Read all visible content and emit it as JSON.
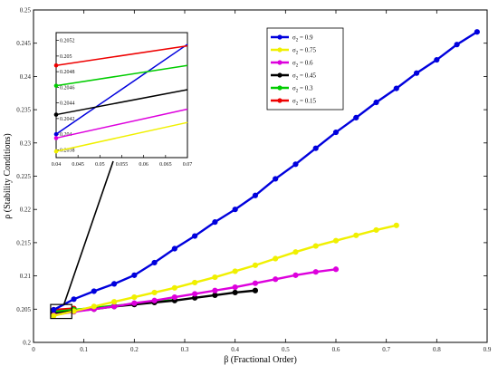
{
  "chart_data": {
    "type": "line",
    "xlabel": "β (Fractional Order)",
    "ylabel": "ρ (Stability Conditions)",
    "xlim": [
      0,
      0.9
    ],
    "ylim": [
      0.2,
      0.25
    ],
    "xticks": [
      "0",
      "0.1",
      "0.2",
      "0.3",
      "0.4",
      "0.5",
      "0.6",
      "0.7",
      "0.8",
      "0.9"
    ],
    "yticks": [
      "0.2",
      "0.205",
      "0.21",
      "0.215",
      "0.22",
      "0.225",
      "0.23",
      "0.235",
      "0.24",
      "0.245",
      "0.25"
    ],
    "grid": false,
    "legend": "top-center",
    "series": [
      {
        "name": "σ2 = 0.9",
        "label_main": "σ",
        "label_sub": "2",
        "label_value": " = 0.9",
        "color": "#0000dd",
        "marker": "circle",
        "x": [
          0.04,
          0.08,
          0.12,
          0.16,
          0.2,
          0.24,
          0.28,
          0.32,
          0.36,
          0.4,
          0.44,
          0.48,
          0.52,
          0.56,
          0.6,
          0.64,
          0.68,
          0.72,
          0.76,
          0.8,
          0.84,
          0.88
        ],
        "y": [
          0.2049,
          0.2065,
          0.2077,
          0.2088,
          0.2101,
          0.212,
          0.2141,
          0.216,
          0.2181,
          0.22,
          0.2221,
          0.2246,
          0.2268,
          0.2292,
          0.2316,
          0.2338,
          0.2361,
          0.2382,
          0.2405,
          0.2425,
          0.2448,
          0.2467
        ]
      },
      {
        "name": "σ2 = 0.75",
        "label_main": "σ",
        "label_sub": "2",
        "label_value": " = 0.75",
        "color": "#f0f000",
        "marker": "circle",
        "x": [
          0.04,
          0.08,
          0.12,
          0.16,
          0.2,
          0.24,
          0.28,
          0.32,
          0.36,
          0.4,
          0.44,
          0.48,
          0.52,
          0.56,
          0.6,
          0.64,
          0.68,
          0.72
        ],
        "y": [
          0.204,
          0.2047,
          0.2054,
          0.2061,
          0.2068,
          0.2075,
          0.2082,
          0.209,
          0.2098,
          0.2107,
          0.2116,
          0.2126,
          0.2136,
          0.2145,
          0.2153,
          0.2161,
          0.2169,
          0.2176
        ]
      },
      {
        "name": "σ2 = 0.6",
        "label_main": "σ",
        "label_sub": "2",
        "label_value": " = 0.6",
        "color": "#dd00dd",
        "marker": "circle",
        "x": [
          0.04,
          0.08,
          0.12,
          0.16,
          0.2,
          0.24,
          0.28,
          0.32,
          0.36,
          0.4,
          0.44,
          0.48,
          0.52,
          0.56,
          0.6
        ],
        "y": [
          0.2041,
          0.2046,
          0.205,
          0.2054,
          0.2059,
          0.2063,
          0.2068,
          0.2073,
          0.2078,
          0.2083,
          0.2089,
          0.2095,
          0.2101,
          0.2106,
          0.211
        ]
      },
      {
        "name": "σ2 = 0.45",
        "label_main": "σ",
        "label_sub": "2",
        "label_value": " = 0.45",
        "color": "#000000",
        "marker": "circle",
        "x": [
          0.04,
          0.08,
          0.12,
          0.16,
          0.2,
          0.24,
          0.28,
          0.32,
          0.36,
          0.4,
          0.44
        ],
        "y": [
          0.2043,
          0.2047,
          0.205,
          0.2054,
          0.2057,
          0.206,
          0.2063,
          0.2067,
          0.2071,
          0.2075,
          0.2078
        ]
      },
      {
        "name": "σ2 = 0.3",
        "label_main": "σ",
        "label_sub": "2",
        "label_value": " = 0.3",
        "color": "#00cc00",
        "marker": "circle",
        "x": [
          0.04,
          0.08,
          0.12,
          0.16,
          0.2,
          0.24,
          0.28
        ],
        "y": [
          0.2046,
          0.2049,
          0.2052,
          0.2055,
          0.2058,
          0.2061,
          0.2064
        ]
      },
      {
        "name": "σ2 = 0.15",
        "label_main": "σ",
        "label_sub": "2",
        "label_value": " = 0.15",
        "color": "#ee0000",
        "marker": "circle",
        "x": [
          0.04,
          0.08
        ],
        "y": [
          0.2049,
          0.2051
        ]
      }
    ],
    "inset": {
      "xlim": [
        0.04,
        0.07
      ],
      "ylim": [
        0.2037,
        0.2053
      ],
      "xticks": [
        "0.04",
        "0.045",
        "0.05",
        "0.055",
        "0.06",
        "0.065",
        "0.07"
      ],
      "yticks": [
        "0.2038",
        "0.204",
        "0.2042",
        "0.2044",
        "0.2046",
        "0.2048",
        "0.205",
        "0.2052"
      ],
      "series": [
        {
          "color": "#0000dd",
          "x": [
            0.04,
            0.0715
          ],
          "y": [
            0.204,
            0.20515
          ]
        },
        {
          "color": "#f0f000",
          "x": [
            0.04,
            0.0715
          ],
          "y": [
            0.20378,
            0.20415
          ]
        },
        {
          "color": "#dd00dd",
          "x": [
            0.04,
            0.0715
          ],
          "y": [
            0.20395,
            0.20432
          ]
        },
        {
          "color": "#000000",
          "x": [
            0.04,
            0.0715
          ],
          "y": [
            0.20425,
            0.20457
          ]
        },
        {
          "color": "#00cc00",
          "x": [
            0.04,
            0.0715
          ],
          "y": [
            0.20462,
            0.20488
          ]
        },
        {
          "color": "#ee0000",
          "x": [
            0.04,
            0.0715
          ],
          "y": [
            0.20488,
            0.20513
          ]
        }
      ]
    }
  }
}
